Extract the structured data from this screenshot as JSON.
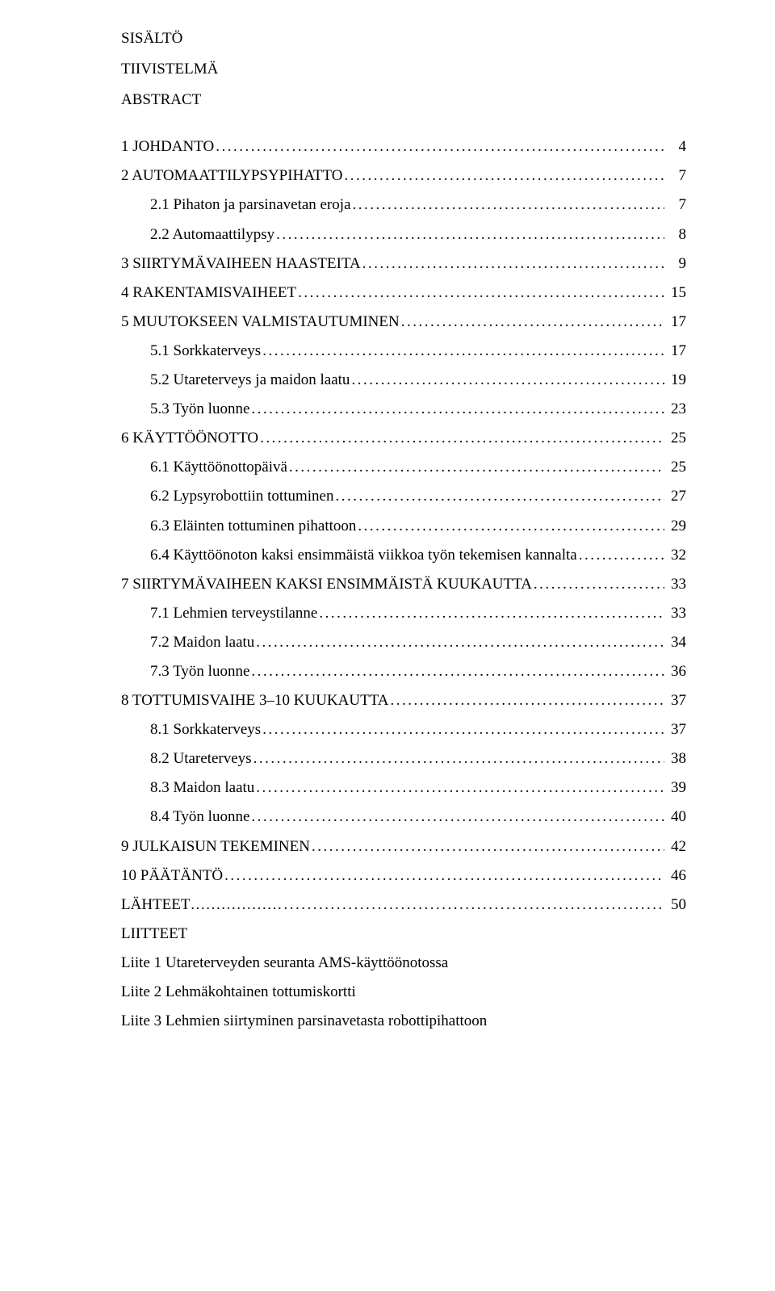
{
  "pre": [
    {
      "text": "SISÄLTÖ"
    },
    {
      "text": "TIIVISTELMÄ"
    },
    {
      "text": "ABSTRACT"
    }
  ],
  "toc": [
    {
      "level": 1,
      "label": "1 JOHDANTO",
      "page": "4"
    },
    {
      "level": 1,
      "label": "2 AUTOMAATTILYPSYPIHATTO",
      "page": "7"
    },
    {
      "level": 2,
      "label": "2.1 Pihaton ja parsinavetan eroja",
      "page": "7"
    },
    {
      "level": 2,
      "label": "2.2 Automaattilypsy",
      "page": "8"
    },
    {
      "level": 1,
      "label": "3 SIIRTYMÄVAIHEEN HAASTEITA",
      "page": "9"
    },
    {
      "level": 1,
      "label": "4 RAKENTAMISVAIHEET",
      "page": "15"
    },
    {
      "level": 1,
      "label": "5 MUUTOKSEEN VALMISTAUTUMINEN",
      "page": "17"
    },
    {
      "level": 2,
      "label": "5.1 Sorkkaterveys",
      "page": "17"
    },
    {
      "level": 2,
      "label": "5.2 Utareterveys ja maidon laatu",
      "page": "19"
    },
    {
      "level": 2,
      "label": "5.3 Työn luonne",
      "page": "23"
    },
    {
      "level": 1,
      "label": "6 KÄYTTÖÖNOTTO",
      "page": "25"
    },
    {
      "level": 2,
      "label": "6.1 Käyttöönottopäivä",
      "page": "25"
    },
    {
      "level": 2,
      "label": "6.2 Lypsyrobottiin tottuminen",
      "page": "27"
    },
    {
      "level": 2,
      "label": "6.3 Eläinten tottuminen pihattoon",
      "page": "29"
    },
    {
      "level": 2,
      "label": "6.4 Käyttöönoton kaksi ensimmäistä viikkoa työn tekemisen kannalta",
      "page": "32"
    },
    {
      "level": 1,
      "label": "7 SIIRTYMÄVAIHEEN KAKSI ENSIMMÄISTÄ KUUKAUTTA",
      "page": "33"
    },
    {
      "level": 2,
      "label": "7.1 Lehmien terveystilanne",
      "page": "33"
    },
    {
      "level": 2,
      "label": "7.2 Maidon laatu",
      "page": "34"
    },
    {
      "level": 2,
      "label": "7.3 Työn luonne",
      "page": "36"
    },
    {
      "level": 1,
      "label": "8 TOTTUMISVAIHE 3–10 KUUKAUTTA",
      "page": "37"
    },
    {
      "level": 2,
      "label": "8.1 Sorkkaterveys",
      "page": "37"
    },
    {
      "level": 2,
      "label": "8.2 Utareterveys",
      "page": "38"
    },
    {
      "level": 2,
      "label": "8.3 Maidon laatu",
      "page": "39"
    },
    {
      "level": 2,
      "label": "8.4 Työn luonne",
      "page": "40"
    },
    {
      "level": 1,
      "label": "9 JULKAISUN TEKEMINEN",
      "page": "42"
    },
    {
      "level": 1,
      "label": "10 PÄÄTÄNTÖ",
      "page": "46"
    },
    {
      "level": 1,
      "label": "LÄHTEET………………",
      "page": "50"
    }
  ],
  "post": {
    "heading": "LIITTEET",
    "items": [
      "Liite 1 Utareterveyden seuranta AMS-käyttöönotossa",
      "Liite 2 Lehmäkohtainen tottumiskortti",
      "Liite 3 Lehmien siirtyminen parsinavetasta robottipihattoon"
    ]
  }
}
